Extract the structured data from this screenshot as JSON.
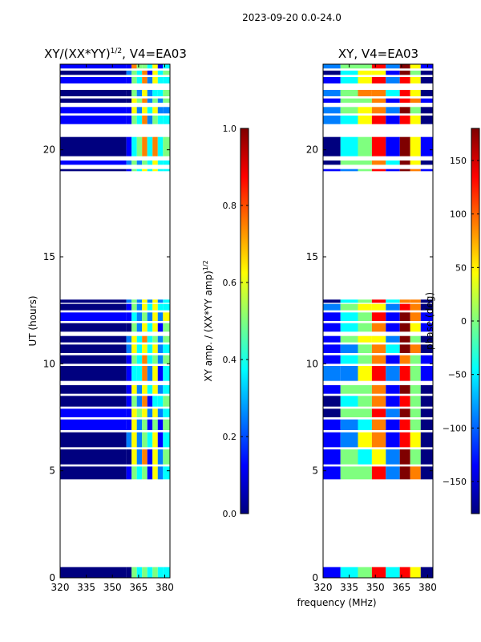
{
  "figure_title": "2023-09-20 0.0-24.0",
  "xlabel_shared": "frequency (MHz)",
  "colors": {
    "jet": [
      "#00007f",
      "#0000ff",
      "#007fff",
      "#00ffff",
      "#7fff7f",
      "#ffff00",
      "#ff7f00",
      "#ff0000",
      "#7f0000"
    ]
  },
  "chart_data": [
    {
      "type": "heatmap",
      "title_main": "XY/(XX*YY)",
      "title_sup": "1/2",
      "title_tail": ", V4=EA03",
      "xlabel": "",
      "ylabel": "UT (hours)",
      "xlim": [
        320,
        383
      ],
      "ylim": [
        0,
        24
      ],
      "xticks": [
        320,
        335,
        350,
        365,
        380
      ],
      "yticks": [
        0,
        5,
        10,
        15,
        20
      ],
      "colorbar": {
        "label_main": "XY amp. / (XX*YY amp)",
        "label_sup": "1/2",
        "range": [
          0.0,
          1.0
        ],
        "ticks": [
          "0.0",
          "0.2",
          "0.4",
          "0.6",
          "0.8",
          "1.0"
        ],
        "tick_values": [
          0.0,
          0.2,
          0.4,
          0.6,
          0.8,
          1.0
        ]
      },
      "data_bands_ut": [
        [
          0.0,
          0.5
        ],
        [
          4.6,
          5.2
        ],
        [
          5.3,
          6.0
        ],
        [
          6.1,
          6.8
        ],
        [
          6.9,
          7.4
        ],
        [
          7.5,
          7.9
        ],
        [
          8.0,
          8.5
        ],
        [
          8.6,
          9.0
        ],
        [
          9.2,
          9.9
        ],
        [
          10.0,
          10.4
        ],
        [
          10.5,
          10.9
        ],
        [
          11.0,
          11.3
        ],
        [
          11.5,
          11.9
        ],
        [
          12.0,
          12.4
        ],
        [
          12.5,
          12.8
        ],
        [
          12.85,
          13.0
        ],
        [
          19.0,
          19.1
        ],
        [
          19.3,
          19.5
        ],
        [
          19.7,
          20.6
        ],
        [
          21.2,
          21.6
        ],
        [
          21.7,
          22.0
        ],
        [
          22.2,
          22.4
        ],
        [
          22.5,
          22.8
        ],
        [
          23.1,
          23.4
        ],
        [
          23.5,
          23.7
        ],
        [
          23.8,
          24.0
        ]
      ],
      "columns_mhz": [
        {
          "from": 320,
          "to": 358,
          "level": 0.05
        },
        {
          "from": 358,
          "to": 361,
          "level": 0.15
        },
        {
          "from": 361,
          "to": 364,
          "level": 0.55
        },
        {
          "from": 364,
          "to": 367,
          "level": 0.35
        },
        {
          "from": 367,
          "to": 370,
          "level": 0.6
        },
        {
          "from": 370,
          "to": 373,
          "level": 0.3
        },
        {
          "from": 373,
          "to": 376,
          "level": 0.55
        },
        {
          "from": 376,
          "to": 379,
          "level": 0.3
        },
        {
          "from": 379,
          "to": 383,
          "level": 0.45
        }
      ]
    },
    {
      "type": "heatmap",
      "title_main": "XY, V4=EA03",
      "title_sup": "",
      "title_tail": "",
      "xlabel": "frequency (MHz)",
      "ylabel": "",
      "xlim": [
        320,
        383
      ],
      "ylim": [
        0,
        24
      ],
      "xticks": [
        320,
        335,
        350,
        365,
        380
      ],
      "yticks": [
        0,
        5,
        10,
        15,
        20
      ],
      "colorbar": {
        "label_main": "phase (deg)",
        "label_sup": "",
        "range": [
          -180,
          180
        ],
        "ticks": [
          "−150",
          "−100",
          "−50",
          "0",
          "50",
          "100",
          "150"
        ],
        "tick_values": [
          -150,
          -100,
          -50,
          0,
          50,
          100,
          150
        ]
      },
      "data_bands_ut": [
        [
          0.0,
          0.5
        ],
        [
          4.6,
          5.2
        ],
        [
          5.3,
          6.0
        ],
        [
          6.1,
          6.8
        ],
        [
          6.9,
          7.4
        ],
        [
          7.5,
          7.9
        ],
        [
          8.0,
          8.5
        ],
        [
          8.6,
          9.0
        ],
        [
          9.2,
          9.9
        ],
        [
          10.0,
          10.4
        ],
        [
          10.5,
          10.9
        ],
        [
          11.0,
          11.3
        ],
        [
          11.5,
          11.9
        ],
        [
          12.0,
          12.4
        ],
        [
          12.5,
          12.8
        ],
        [
          12.85,
          13.0
        ],
        [
          19.0,
          19.1
        ],
        [
          19.3,
          19.5
        ],
        [
          19.7,
          20.6
        ],
        [
          21.2,
          21.6
        ],
        [
          21.7,
          22.0
        ],
        [
          22.2,
          22.4
        ],
        [
          22.5,
          22.8
        ],
        [
          23.1,
          23.4
        ],
        [
          23.5,
          23.7
        ],
        [
          23.8,
          24.0
        ]
      ],
      "columns_mhz": [
        {
          "from": 320,
          "to": 330,
          "level": -120
        },
        {
          "from": 330,
          "to": 340,
          "level": -40
        },
        {
          "from": 340,
          "to": 348,
          "level": 20
        },
        {
          "from": 348,
          "to": 356,
          "level": 90
        },
        {
          "from": 356,
          "to": 364,
          "level": -80
        },
        {
          "from": 364,
          "to": 370,
          "level": 140
        },
        {
          "from": 370,
          "to": 376,
          "level": 40
        },
        {
          "from": 376,
          "to": 383,
          "level": -150
        }
      ]
    }
  ]
}
